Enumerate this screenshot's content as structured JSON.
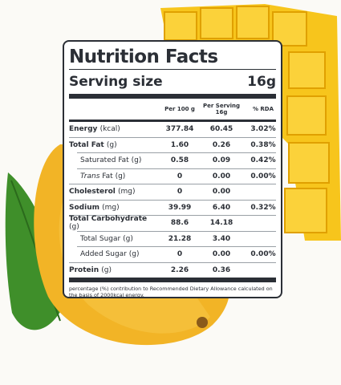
{
  "label": {
    "title": "Nutrition Facts",
    "serving_label": "Serving size",
    "serving_value": "16g",
    "columns": {
      "per100": "Per 100 g",
      "per_serving": [
        "Per Serving",
        "16g"
      ],
      "rda": "% RDA"
    },
    "rows": [
      {
        "name": "Energy",
        "unit": "(kcal)",
        "per100": "377.84",
        "serving": "60.45",
        "rda": "3.02%",
        "bold": true
      },
      {
        "name": "Total Fat",
        "unit": "(g)",
        "per100": "1.60",
        "serving": "0.26",
        "rda": "0.38%",
        "bold": true
      },
      {
        "name": "Saturated Fat",
        "unit": "(g)",
        "per100": "0.58",
        "serving": "0.09",
        "rda": "0.42%",
        "indent": true
      },
      {
        "italic": "Trans",
        "name": "Fat",
        "unit": "(g)",
        "per100": "0",
        "serving": "0.00",
        "rda": "0.00%",
        "indent": true
      },
      {
        "name": "Cholesterol",
        "unit": "(mg)",
        "per100": "0",
        "serving": "0.00",
        "bold": true
      },
      {
        "name": "Sodium",
        "unit": "(mg)",
        "per100": "39.99",
        "serving": "6.40",
        "rda": "0.32%",
        "bold": true
      },
      {
        "name": "Total Carbohydrate",
        "unit": "(g)",
        "per100": "88.6",
        "serving": "14.18",
        "bold": true
      },
      {
        "name": "Total Sugar",
        "unit": "(g)",
        "per100": "21.28",
        "serving": "3.40",
        "indent": true
      },
      {
        "name": "Added Sugar",
        "unit": "(g)",
        "per100": "0",
        "serving": "0.00",
        "rda": "0.00%",
        "indent": true
      },
      {
        "name": "Protein",
        "unit": "(g)",
        "per100": "2.26",
        "serving": "0.36",
        "bold": true
      }
    ],
    "footnote": "percentage (%) contribution to Recommended Dietary Allowance calculated on the basis of 2000kcal energy."
  }
}
